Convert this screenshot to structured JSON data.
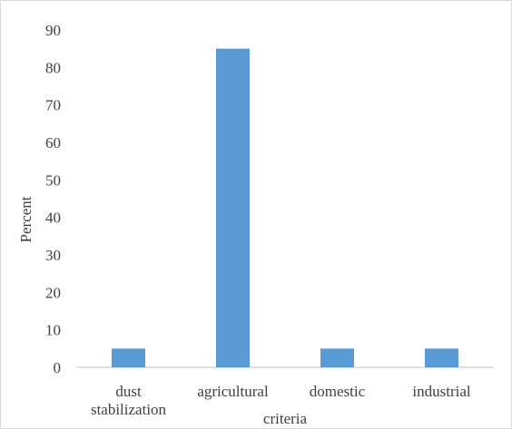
{
  "chart_data": {
    "type": "bar",
    "title": "",
    "xlabel": "criteria",
    "ylabel": "Percent",
    "categories": [
      [
        "dust",
        "stabilization"
      ],
      [
        "agricultural"
      ],
      [
        "domestic"
      ],
      [
        "industrial"
      ]
    ],
    "series": [
      {
        "values": [
          5,
          85,
          5,
          5
        ],
        "color": "#5b9bd5"
      }
    ],
    "ylim": [
      0,
      90
    ],
    "yticks": [
      0,
      10,
      20,
      30,
      40,
      50,
      60,
      70,
      80,
      90
    ],
    "grid": false,
    "legend": "none"
  }
}
